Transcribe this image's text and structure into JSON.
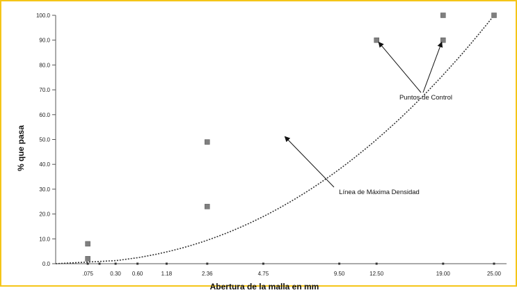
{
  "chart_data": {
    "type": "scatter",
    "xlabel": "Abertura de la malla en mm",
    "ylabel": "% que pasa",
    "x_scale": "power-0.45",
    "ylim": [
      0,
      100
    ],
    "x_ticks": [
      ".075",
      "0.30",
      "0.60",
      "1.18",
      "2.36",
      "4.75",
      "9.50",
      "12.50",
      "19.00",
      "25.00"
    ],
    "x_tick_values": [
      0.075,
      0.3,
      0.6,
      1.18,
      2.36,
      4.75,
      9.5,
      12.5,
      19.0,
      25.0
    ],
    "x_minor_tick_values": [
      0.15
    ],
    "y_ticks": [
      "0.0",
      "10.0",
      "20.0",
      "30.0",
      "40.0",
      "50.0",
      "60.0",
      "70.0",
      "80.0",
      "90.0",
      "100.0"
    ],
    "y_tick_values": [
      0,
      10,
      20,
      30,
      40,
      50,
      60,
      70,
      80,
      90,
      100
    ],
    "series": [
      {
        "name": "Puntos de Control",
        "style": "square-markers",
        "color": "#7f7f7f",
        "points": [
          {
            "x": 0.075,
            "y": 8
          },
          {
            "x": 0.075,
            "y": 2
          },
          {
            "x": 2.36,
            "y": 49
          },
          {
            "x": 2.36,
            "y": 23
          },
          {
            "x": 12.5,
            "y": 90
          },
          {
            "x": 19.0,
            "y": 100
          },
          {
            "x": 19.0,
            "y": 90
          },
          {
            "x": 25.0,
            "y": 100
          }
        ]
      },
      {
        "name": "Línea de Máxima Densidad",
        "style": "dotted-line",
        "color": "#333333",
        "points": [
          {
            "x": 0,
            "y": 0
          },
          {
            "x": 25.0,
            "y": 100
          }
        ]
      }
    ],
    "annotations": [
      {
        "text": "Puntos de Control",
        "targets": [
          {
            "x": 12.5,
            "y": 90
          },
          {
            "x": 19.0,
            "y": 90
          }
        ]
      },
      {
        "text": "Línea de Máxima Densidad",
        "targets": [
          {
            "x": 5.8,
            "y": 52
          }
        ]
      }
    ],
    "grid": false,
    "legend": "none",
    "frame_color": "#f5c518"
  }
}
